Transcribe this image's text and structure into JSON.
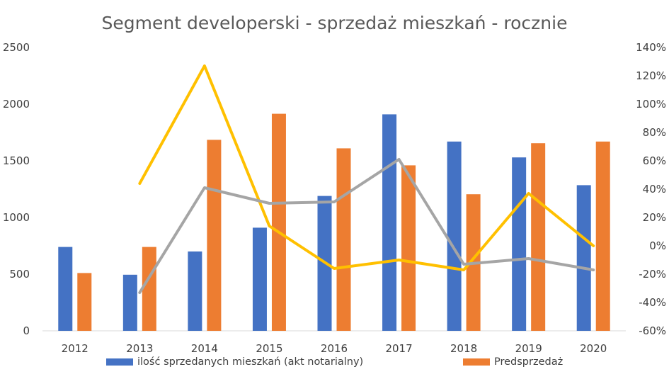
{
  "chart_data": {
    "type": "bar",
    "title": "Segment developerski - sprzedaż mieszkań - rocznie",
    "categories": [
      "2012",
      "2013",
      "2014",
      "2015",
      "2016",
      "2017",
      "2018",
      "2019",
      "2020"
    ],
    "y_left": {
      "min": 0,
      "max": 2500,
      "ticks": [
        "0",
        "500",
        "1000",
        "1500",
        "2000",
        "2500"
      ]
    },
    "y_right": {
      "min": -60,
      "max": 140,
      "ticks": [
        "-60%",
        "-40%",
        "-20%",
        "0%",
        "20%",
        "40%",
        "60%",
        "80%",
        "100%",
        "120%",
        "140%"
      ]
    },
    "series": [
      {
        "name": "ilość sprzedanych mieszkań (akt notarialny)",
        "type": "bar",
        "axis": "left",
        "color": "#4472C4",
        "values": [
          740,
          495,
          700,
          910,
          1190,
          1910,
          1670,
          1530,
          1285
        ]
      },
      {
        "name": "Predsprzedaż",
        "type": "bar",
        "axis": "left",
        "color": "#ED7D31",
        "values": [
          510,
          740,
          1685,
          1915,
          1610,
          1460,
          1205,
          1655,
          1670
        ]
      },
      {
        "type": "line",
        "axis": "right",
        "color": "#FFC000",
        "values": [
          null,
          44,
          127,
          14,
          -16,
          -10,
          -17,
          37,
          0
        ]
      },
      {
        "type": "line",
        "axis": "right",
        "color": "#A5A5A5",
        "values": [
          null,
          -33,
          41,
          30,
          31,
          61,
          -13,
          -9,
          -17
        ]
      }
    ],
    "legend_position": "bottom",
    "grid": false
  }
}
